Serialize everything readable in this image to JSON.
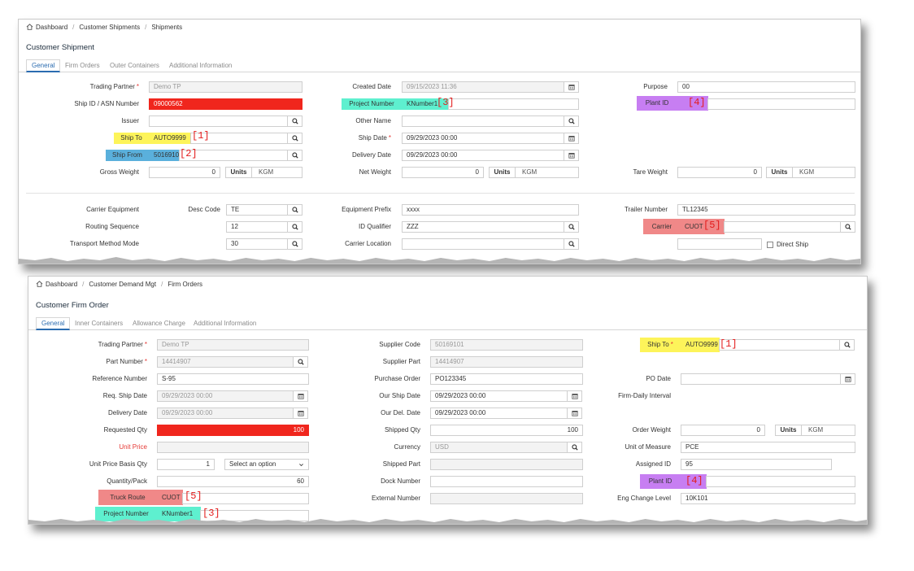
{
  "panel1": {
    "breadcrumb": [
      "Dashboard",
      "Customer Shipments",
      "Shipments"
    ],
    "title": "Customer Shipment",
    "tabs": [
      "General",
      "Firm Orders",
      "Outer Containers",
      "Additional Information"
    ],
    "fields": {
      "trading_partner_label": "Trading Partner",
      "trading_partner_value": "Demo TP",
      "ship_id_label": "Ship ID / ASN Number",
      "ship_id_value": "09000562",
      "issuer_label": "Issuer",
      "ship_to_label": "Ship To",
      "ship_to_value": "AUTO9999",
      "ship_from_label": "Ship From",
      "ship_from_value": "5016910",
      "gross_weight_label": "Gross Weight",
      "gross_weight_value": "0",
      "created_date_label": "Created Date",
      "created_date_value": "09/15/2023 11:36",
      "project_number_label": "Project Number",
      "project_number_value": "KNumber1",
      "other_name_label": "Other Name",
      "ship_date_label": "Ship Date",
      "ship_date_value": "09/29/2023 00:00",
      "delivery_date_label": "Delivery Date",
      "delivery_date_value": "09/29/2023 00:00",
      "net_weight_label": "Net Weight",
      "net_weight_value": "0",
      "purpose_label": "Purpose",
      "purpose_value": "00",
      "plant_id_label": "Plant ID",
      "tare_weight_label": "Tare Weight",
      "tare_weight_value": "0",
      "units_label": "Units",
      "units_value": "KGM",
      "carrier_equipment_label": "Carrier Equipment",
      "desc_code_label": "Desc Code",
      "desc_code_value": "TE",
      "routing_sequence_label": "Routing Sequence",
      "routing_sequence_value": "12",
      "transport_method_label": "Transport Method Mode",
      "transport_method_value": "30",
      "equipment_prefix_label": "Equipment Prefix",
      "equipment_prefix_value": "xxxx",
      "id_qualifier_label": "ID Qualifier",
      "id_qualifier_value": "ZZZ",
      "carrier_location_label": "Carrier Location",
      "trailer_number_label": "Trailer Number",
      "trailer_number_value": "TL12345",
      "carrier_label": "Carrier",
      "carrier_value": "CUOT",
      "direct_ship_label": "Direct Ship"
    }
  },
  "panel2": {
    "breadcrumb": [
      "Dashboard",
      "Customer Demand Mgt",
      "Firm Orders"
    ],
    "title": "Customer Firm Order",
    "tabs": [
      "General",
      "Inner Containers",
      "Allowance Charge",
      "Additional Information"
    ],
    "fields": {
      "trading_partner_label": "Trading Partner",
      "trading_partner_value": "Demo TP",
      "part_number_label": "Part Number",
      "part_number_value": "14414907",
      "reference_number_label": "Reference Number",
      "reference_number_value": "S-95",
      "req_ship_date_label": "Req. Ship Date",
      "req_ship_date_value": "09/29/2023 00:00",
      "delivery_date_label": "Delivery Date",
      "delivery_date_value": "09/29/2023 00:00",
      "requested_qty_label": "Requested Qty",
      "requested_qty_value": "100",
      "unit_price_label": "Unit Price",
      "unit_price_basis_label": "Unit Price Basis Qty",
      "unit_price_basis_value": "1",
      "select_option": "Select an option",
      "quantity_pack_label": "Quantity/Pack",
      "quantity_pack_value": "60",
      "truck_route_label": "Truck Route",
      "truck_route_value": "CUOT",
      "project_number_label": "Project Number",
      "project_number_value": "KNumber1",
      "supplier_code_label": "Supplier Code",
      "supplier_code_value": "50169101",
      "supplier_part_label": "Supplier Part",
      "supplier_part_value": "14414907",
      "purchase_order_label": "Purchase Order",
      "purchase_order_value": "PO123345",
      "our_ship_date_label": "Our Ship Date",
      "our_ship_date_value": "09/29/2023 00:00",
      "our_del_date_label": "Our Del. Date",
      "our_del_date_value": "09/29/2023 00:00",
      "shipped_qty_label": "Shipped Qty",
      "shipped_qty_value": "100",
      "currency_label": "Currency",
      "currency_value": "USD",
      "shipped_part_label": "Shipped Part",
      "dock_number_label": "Dock Number",
      "external_number_label": "External Number",
      "ship_to_label": "Ship To",
      "ship_to_value": "AUTO9999",
      "po_date_label": "PO Date",
      "firm_daily_label": "Firm-Daily Interval",
      "order_weight_label": "Order Weight",
      "order_weight_value": "0",
      "units_label": "Units",
      "units_value": "KGM",
      "uom_label": "Unit of Measure",
      "uom_value": "PCE",
      "assigned_id_label": "Assigned ID",
      "assigned_id_value": "95",
      "plant_id_label": "Plant ID",
      "eng_change_label": "Eng Change Level",
      "eng_change_value": "10K101"
    }
  },
  "annotations": [
    "[1]",
    "[2]",
    "[3]",
    "[4]",
    "[5]"
  ],
  "colors": {
    "yellow": "#fdf45a",
    "cyan": "#5ef0cf",
    "blue": "#5ab0dc",
    "purple": "#c77ef2",
    "pink": "#f08888",
    "red": "#f0261d",
    "accent": "#2b6cb0"
  },
  "icons": [
    "home-icon",
    "search-icon",
    "calendar-icon",
    "chevron-down-icon",
    "checkbox"
  ]
}
